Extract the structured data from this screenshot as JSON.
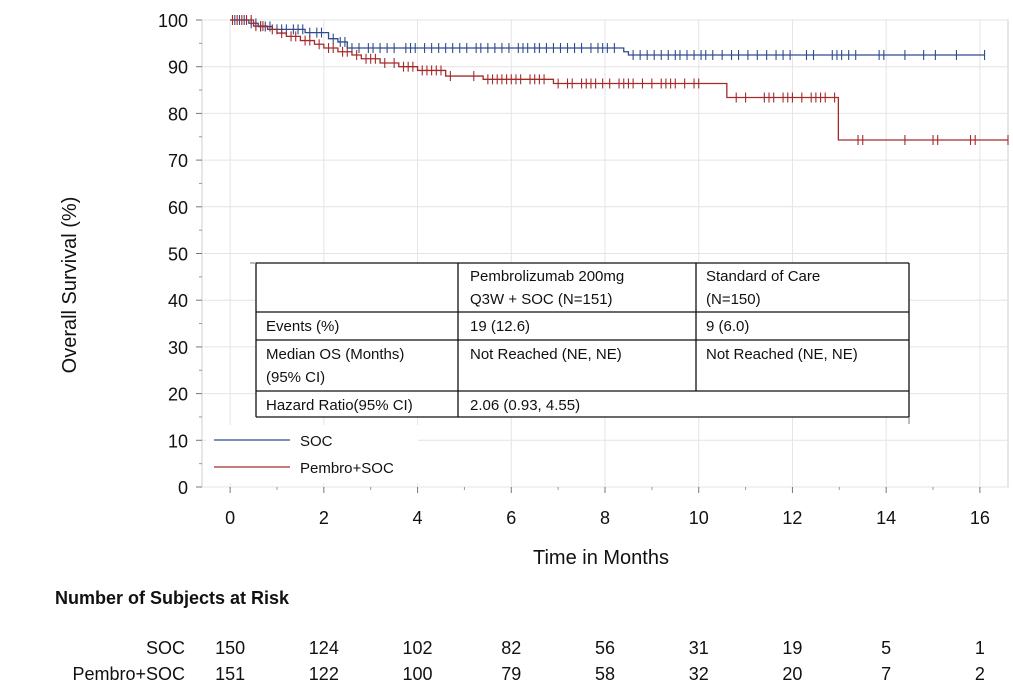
{
  "chart_data": {
    "type": "line",
    "subtype": "kaplan-meier",
    "title": "",
    "xlabel": "Time in Months",
    "ylabel": "Overall Survival (%)",
    "xlim": [
      -0.6,
      16.6
    ],
    "ylim": [
      0,
      100
    ],
    "xticks": [
      0,
      2,
      4,
      6,
      8,
      10,
      12,
      14,
      16
    ],
    "yticks": [
      0,
      10,
      20,
      30,
      40,
      50,
      60,
      70,
      80,
      90,
      100
    ],
    "grid": true,
    "legend_position": "bottom-left",
    "series": [
      {
        "name": "SOC",
        "color": "#2f4b8f",
        "steps": [
          [
            0,
            100
          ],
          [
            0.4,
            99.3
          ],
          [
            0.6,
            98.6
          ],
          [
            0.9,
            98
          ],
          [
            1.6,
            97.3
          ],
          [
            2.1,
            96
          ],
          [
            2.3,
            95.3
          ],
          [
            2.5,
            94
          ],
          [
            8.4,
            93.2
          ],
          [
            8.5,
            92.5
          ],
          [
            16.1,
            92.5
          ]
        ],
        "censors": [
          0.1,
          0.2,
          0.3,
          0.45,
          0.55,
          0.65,
          0.75,
          0.85,
          1.0,
          1.1,
          1.2,
          1.35,
          1.45,
          1.55,
          1.7,
          1.85,
          1.95,
          2.2,
          2.35,
          2.45,
          2.6,
          2.75,
          2.95,
          3.05,
          3.2,
          3.35,
          3.5,
          3.75,
          3.85,
          3.95,
          4.15,
          4.3,
          4.45,
          4.6,
          4.75,
          4.9,
          5.05,
          5.25,
          5.35,
          5.5,
          5.65,
          5.8,
          5.95,
          6.15,
          6.25,
          6.35,
          6.5,
          6.6,
          6.75,
          6.9,
          7.05,
          7.2,
          7.35,
          7.5,
          7.7,
          7.85,
          7.95,
          8.05,
          8.2,
          8.6,
          8.75,
          8.9,
          9.05,
          9.2,
          9.35,
          9.5,
          9.6,
          9.75,
          9.9,
          10.05,
          10.15,
          10.3,
          10.5,
          10.7,
          10.85,
          11.05,
          11.25,
          11.45,
          11.65,
          11.8,
          11.95,
          12.3,
          12.45,
          12.85,
          12.95,
          13.05,
          13.2,
          13.35,
          13.85,
          13.95,
          14.4,
          14.8,
          15.05,
          15.5,
          16.1
        ]
      },
      {
        "name": "Pembro+SOC",
        "color": "#a52a2a",
        "steps": [
          [
            0,
            100
          ],
          [
            0.5,
            98.7
          ],
          [
            0.8,
            98
          ],
          [
            1.0,
            97.2
          ],
          [
            1.2,
            96.5
          ],
          [
            1.5,
            95.6
          ],
          [
            1.8,
            94.8
          ],
          [
            2.0,
            94
          ],
          [
            2.3,
            93.2
          ],
          [
            2.6,
            92.5
          ],
          [
            2.8,
            91.7
          ],
          [
            3.2,
            90.8
          ],
          [
            3.6,
            90
          ],
          [
            4.0,
            89.2
          ],
          [
            4.6,
            88
          ],
          [
            5.4,
            87.3
          ],
          [
            6.9,
            86.4
          ],
          [
            10.6,
            83.4
          ],
          [
            12.98,
            74.3
          ],
          [
            16.6,
            74.3
          ]
        ],
        "censors": [
          0.05,
          0.15,
          0.25,
          0.35,
          0.45,
          0.55,
          0.65,
          0.7,
          0.9,
          1.1,
          1.3,
          1.4,
          1.6,
          1.7,
          1.9,
          2.1,
          2.2,
          2.4,
          2.5,
          2.7,
          2.9,
          3.0,
          3.1,
          3.3,
          3.5,
          3.7,
          3.8,
          3.9,
          4.1,
          4.2,
          4.3,
          4.4,
          4.5,
          4.7,
          5.2,
          5.5,
          5.6,
          5.7,
          5.8,
          5.9,
          6.0,
          6.1,
          6.2,
          6.4,
          6.5,
          6.6,
          6.7,
          7.0,
          7.2,
          7.3,
          7.5,
          7.6,
          7.7,
          7.8,
          7.95,
          8.1,
          8.3,
          8.4,
          8.5,
          8.6,
          8.8,
          9.0,
          9.2,
          9.3,
          9.4,
          9.5,
          9.7,
          9.9,
          10.0,
          10.8,
          11.0,
          11.4,
          11.5,
          11.6,
          11.8,
          11.9,
          12.0,
          12.2,
          12.4,
          12.5,
          12.6,
          12.7,
          12.9,
          13.4,
          13.5,
          14.4,
          15.0,
          15.1,
          15.8,
          15.9,
          16.6
        ]
      }
    ],
    "summary_table": {
      "col_headers": [
        "",
        "Pembrolizumab 200mg\nQ3W + SOC  (N=151)",
        " Standard of Care\n(N=150)"
      ],
      "rows": [
        {
          "label": "Events (%)",
          "pembro": "19 (12.6)",
          "soc": "9 (6.0)"
        },
        {
          "label": "Median OS  (Months)\n(95% CI)",
          "pembro": "Not Reached (NE, NE)",
          "soc": "Not Reached (NE, NE)"
        },
        {
          "label": "Hazard Ratio(95% CI)",
          "pembro": "2.06 (0.93, 4.55)",
          "soc": ""
        }
      ]
    },
    "risk_table": {
      "title": "Number of Subjects at Risk",
      "times": [
        0,
        2,
        4,
        6,
        8,
        10,
        12,
        14,
        16
      ],
      "rows": [
        {
          "name": "SOC",
          "values": [
            "150",
            "124",
            "102",
            "82",
            "56",
            "31",
            "19",
            "5",
            "1"
          ]
        },
        {
          "name": "Pembro+SOC",
          "values": [
            "151",
            "122",
            "100",
            "79",
            "58",
            "32",
            "20",
            "7",
            "2"
          ]
        }
      ]
    }
  }
}
